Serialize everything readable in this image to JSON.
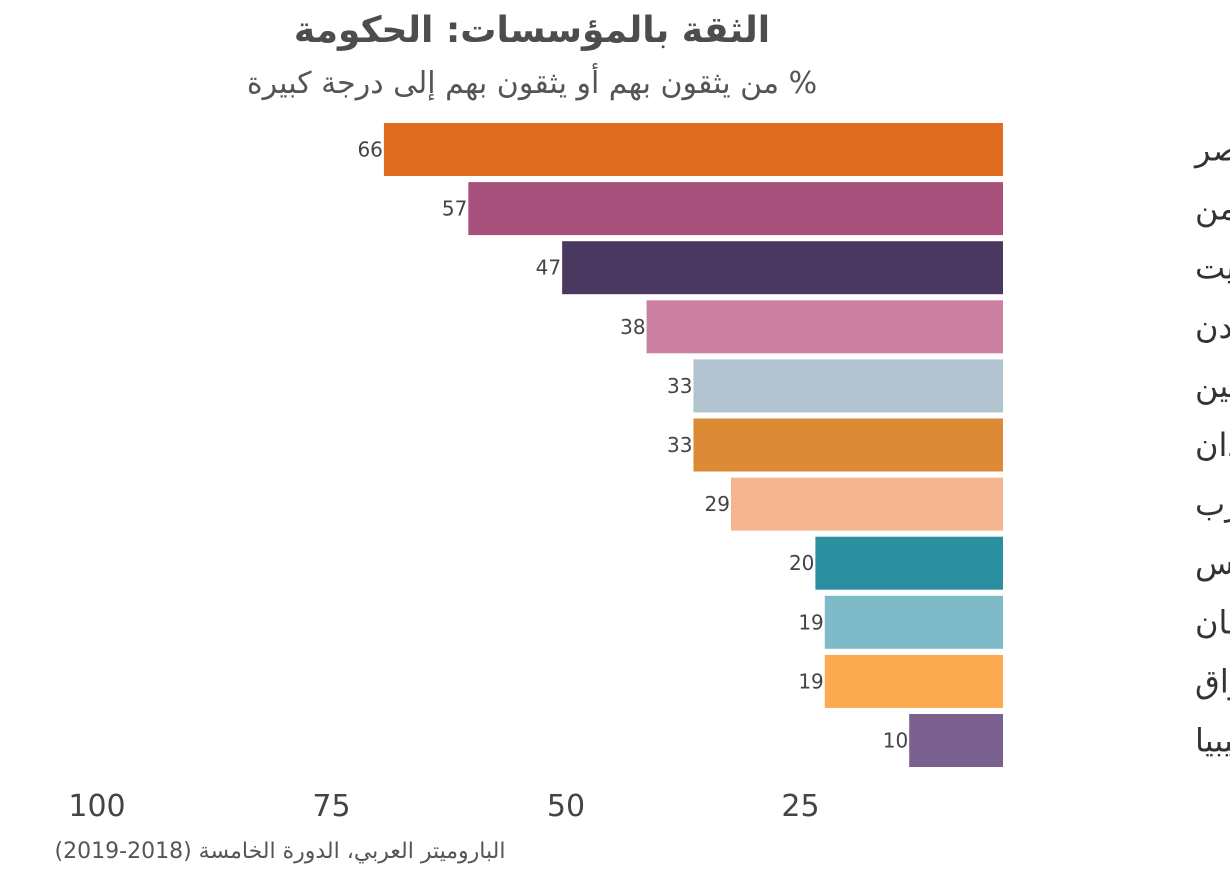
{
  "chart_data": {
    "type": "bar",
    "orientation": "horizontal",
    "title": "الثقة بالمؤسسات: الحكومة",
    "subtitle": "% من يثقون بهم أو يثقون بهم  إلى درجة كبيرة",
    "caption": "الباروميتر العربي، الدورة الخامسة (2018-2019)",
    "categories": [
      "مصر",
      "اليمن",
      "الكويت",
      "الأردن",
      "فلسطين",
      "السودان",
      "المغرب",
      "تونس",
      "لبنان",
      "العراق",
      "ليبيا"
    ],
    "values": [
      66,
      57,
      47,
      38,
      33,
      33,
      29,
      20,
      19,
      19,
      10
    ],
    "colors": [
      "#e06c20",
      "#a8507c",
      "#4a3860",
      "#cc80a2",
      "#b0c3cf",
      "#dc8a35",
      "#f5b58e",
      "#2a8f9e",
      "#7fbac8",
      "#fcaa50",
      "#7a6190"
    ],
    "xlim": [
      0,
      100
    ],
    "x_direction": "right-to-left",
    "ticks": [
      25,
      50,
      75,
      100
    ],
    "tick_labels": [
      "25",
      "50",
      "75",
      "100"
    ],
    "grid": false,
    "legend": "none"
  }
}
